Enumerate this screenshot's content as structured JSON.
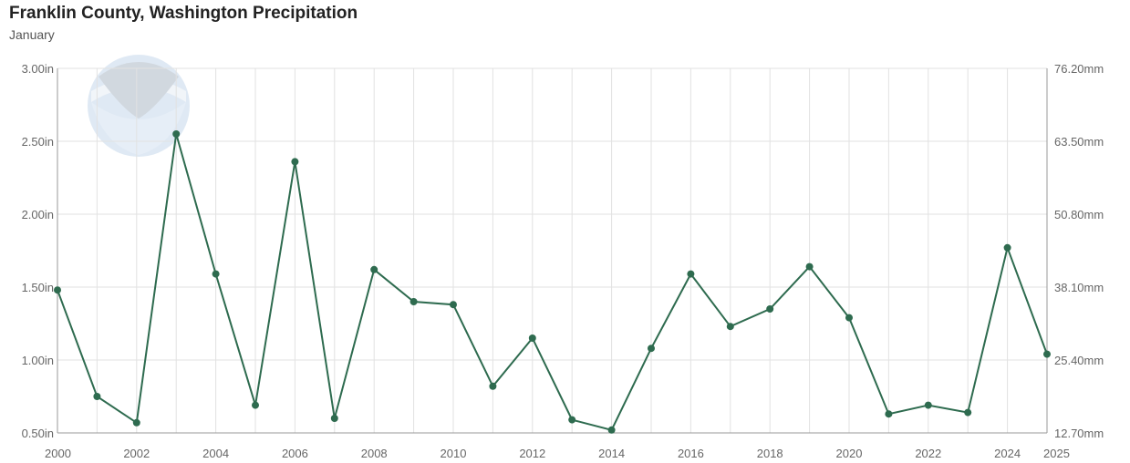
{
  "header": {
    "title": "Franklin County, Washington Precipitation",
    "subtitle": "January"
  },
  "chart_data": {
    "type": "line",
    "title": "Franklin County, Washington Precipitation",
    "subtitle": "January",
    "x": [
      2000,
      2001,
      2002,
      2003,
      2004,
      2005,
      2006,
      2007,
      2008,
      2009,
      2010,
      2011,
      2012,
      2013,
      2014,
      2015,
      2016,
      2017,
      2018,
      2019,
      2020,
      2021,
      2022,
      2023,
      2024,
      2025
    ],
    "series": [
      {
        "values": [
          1.48,
          0.75,
          0.57,
          2.55,
          1.59,
          0.69,
          2.36,
          0.6,
          1.62,
          1.4,
          1.38,
          0.82,
          1.15,
          0.59,
          0.52,
          1.08,
          1.59,
          1.23,
          1.35,
          1.64,
          1.29,
          0.63,
          0.69,
          0.64,
          1.77,
          1.04
        ]
      }
    ],
    "xticks": [
      "2000",
      "2002",
      "2004",
      "2006",
      "2008",
      "2010",
      "2012",
      "2014",
      "2016",
      "2018",
      "2020",
      "2022",
      "2024",
      "2025"
    ],
    "yticks_left": [
      "3.00in",
      "2.50in",
      "2.00in",
      "1.50in",
      "1.00in",
      "0.50in"
    ],
    "yticks_right": [
      "76.20mm",
      "63.50mm",
      "50.80mm",
      "38.10mm",
      "25.40mm",
      "12.70mm"
    ],
    "ylim": [
      0.5,
      3.0
    ],
    "xlim": [
      2000,
      2025
    ],
    "grid": true,
    "colors": {
      "line": "#2e6b4f",
      "grid": "#e2e2e2",
      "axis": "#999999"
    },
    "watermark": "noaa-logo"
  }
}
